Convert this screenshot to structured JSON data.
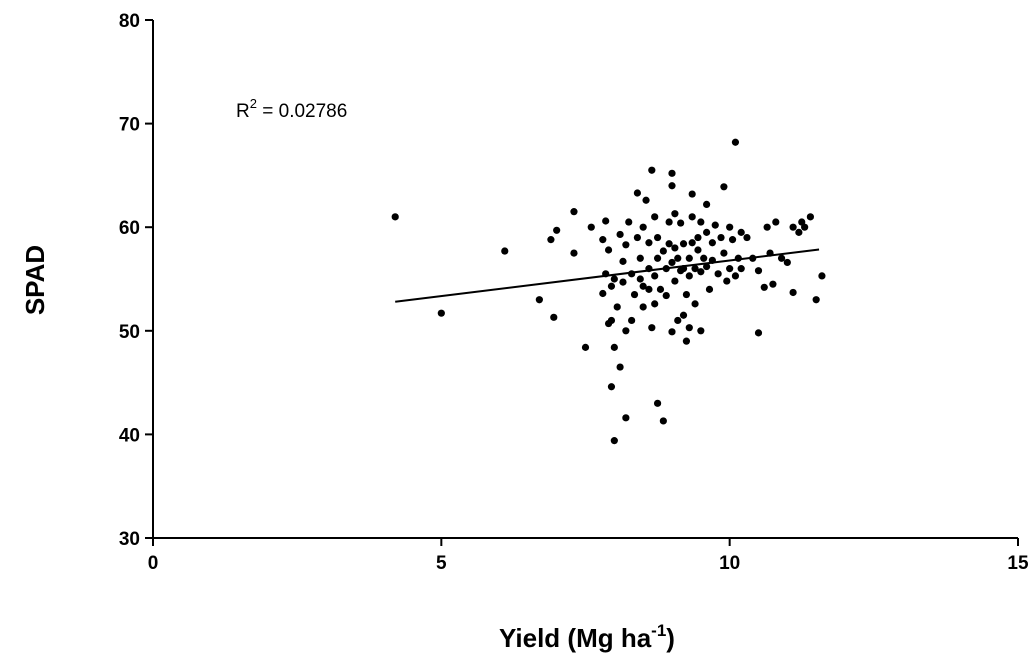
{
  "chart_data": {
    "type": "scatter",
    "title": "",
    "xlabel": "Yield (Mg ha",
    "xlabel_sup": "-1",
    "xlabel_end": ")",
    "ylabel": "SPAD",
    "xlim": [
      0,
      15
    ],
    "ylim": [
      30,
      80
    ],
    "xticks": [
      "0",
      "5",
      "10",
      "15"
    ],
    "yticks": [
      "30",
      "40",
      "50",
      "60",
      "70",
      "80"
    ],
    "grid": false,
    "annotation": {
      "prefix": "R",
      "sup": "2",
      "suffix": " = 0.02786"
    },
    "trendline": {
      "x": [
        4.2,
        11.55
      ],
      "y": [
        52.8,
        57.85
      ]
    },
    "points": [
      [
        4.2,
        61.0
      ],
      [
        5.0,
        51.7
      ],
      [
        6.1,
        57.7
      ],
      [
        6.7,
        53.0
      ],
      [
        6.9,
        58.8
      ],
      [
        6.95,
        51.3
      ],
      [
        7.0,
        59.7
      ],
      [
        7.3,
        61.5
      ],
      [
        7.3,
        57.5
      ],
      [
        7.5,
        48.4
      ],
      [
        7.6,
        60.0
      ],
      [
        7.8,
        58.8
      ],
      [
        7.8,
        53.6
      ],
      [
        7.85,
        60.6
      ],
      [
        7.85,
        55.5
      ],
      [
        7.9,
        57.8
      ],
      [
        7.9,
        50.7
      ],
      [
        7.95,
        54.3
      ],
      [
        7.95,
        51.0
      ],
      [
        8.0,
        55.0
      ],
      [
        7.95,
        44.6
      ],
      [
        8.0,
        48.4
      ],
      [
        8.0,
        39.4
      ],
      [
        8.05,
        52.3
      ],
      [
        8.1,
        59.3
      ],
      [
        8.1,
        46.5
      ],
      [
        8.15,
        56.7
      ],
      [
        8.15,
        54.7
      ],
      [
        8.2,
        58.3
      ],
      [
        8.2,
        50.0
      ],
      [
        8.2,
        41.6
      ],
      [
        8.25,
        60.5
      ],
      [
        8.3,
        55.5
      ],
      [
        8.3,
        51.0
      ],
      [
        8.35,
        53.5
      ],
      [
        8.4,
        63.3
      ],
      [
        8.4,
        59.0
      ],
      [
        8.45,
        57.0
      ],
      [
        8.45,
        55.0
      ],
      [
        8.5,
        60.0
      ],
      [
        8.5,
        54.3
      ],
      [
        8.5,
        52.3
      ],
      [
        8.55,
        62.6
      ],
      [
        8.6,
        58.5
      ],
      [
        8.6,
        56.0
      ],
      [
        8.6,
        54.0
      ],
      [
        8.65,
        65.5
      ],
      [
        8.65,
        50.3
      ],
      [
        8.7,
        61.0
      ],
      [
        8.7,
        55.3
      ],
      [
        8.7,
        52.6
      ],
      [
        8.75,
        59.0
      ],
      [
        8.75,
        57.0
      ],
      [
        8.75,
        43.0
      ],
      [
        8.8,
        54.0
      ],
      [
        8.85,
        57.7
      ],
      [
        8.85,
        41.3
      ],
      [
        8.9,
        56.0
      ],
      [
        8.9,
        53.4
      ],
      [
        8.95,
        60.5
      ],
      [
        8.95,
        58.4
      ],
      [
        9.0,
        65.2
      ],
      [
        9.0,
        64.0
      ],
      [
        9.0,
        56.6
      ],
      [
        9.0,
        49.9
      ],
      [
        9.05,
        61.3
      ],
      [
        9.05,
        58.0
      ],
      [
        9.05,
        54.8
      ],
      [
        9.1,
        57.0
      ],
      [
        9.1,
        51.0
      ],
      [
        9.15,
        60.4
      ],
      [
        9.15,
        55.8
      ],
      [
        9.2,
        58.4
      ],
      [
        9.2,
        56.0
      ],
      [
        9.2,
        51.5
      ],
      [
        9.25,
        53.5
      ],
      [
        9.25,
        49.0
      ],
      [
        9.3,
        57.0
      ],
      [
        9.3,
        55.3
      ],
      [
        9.3,
        50.3
      ],
      [
        9.35,
        61.0
      ],
      [
        9.35,
        58.5
      ],
      [
        9.35,
        63.2
      ],
      [
        9.4,
        56.0
      ],
      [
        9.4,
        52.6
      ],
      [
        9.45,
        59.0
      ],
      [
        9.45,
        57.8
      ],
      [
        9.5,
        60.5
      ],
      [
        9.5,
        55.7
      ],
      [
        9.5,
        50.0
      ],
      [
        9.55,
        57.0
      ],
      [
        9.6,
        62.2
      ],
      [
        9.6,
        59.5
      ],
      [
        9.6,
        56.2
      ],
      [
        9.65,
        54.0
      ],
      [
        9.7,
        58.5
      ],
      [
        9.7,
        56.8
      ],
      [
        9.75,
        60.2
      ],
      [
        9.8,
        55.5
      ],
      [
        9.85,
        59.0
      ],
      [
        9.9,
        63.9
      ],
      [
        9.9,
        57.5
      ],
      [
        9.95,
        54.8
      ],
      [
        10.0,
        60.0
      ],
      [
        10.0,
        56.0
      ],
      [
        10.05,
        58.8
      ],
      [
        10.1,
        55.3
      ],
      [
        10.1,
        68.2
      ],
      [
        10.15,
        57.0
      ],
      [
        10.2,
        59.5
      ],
      [
        10.2,
        56.0
      ],
      [
        10.3,
        59.0
      ],
      [
        10.4,
        57.0
      ],
      [
        10.5,
        55.8
      ],
      [
        10.5,
        49.8
      ],
      [
        10.6,
        54.2
      ],
      [
        10.65,
        60.0
      ],
      [
        10.7,
        57.5
      ],
      [
        10.75,
        54.5
      ],
      [
        10.8,
        60.5
      ],
      [
        10.9,
        57.0
      ],
      [
        11.0,
        56.6
      ],
      [
        11.1,
        53.7
      ],
      [
        11.1,
        60.0
      ],
      [
        11.2,
        59.5
      ],
      [
        11.25,
        60.5
      ],
      [
        11.3,
        60.0
      ],
      [
        11.4,
        61.0
      ],
      [
        11.5,
        53.0
      ],
      [
        11.6,
        55.3
      ]
    ]
  }
}
